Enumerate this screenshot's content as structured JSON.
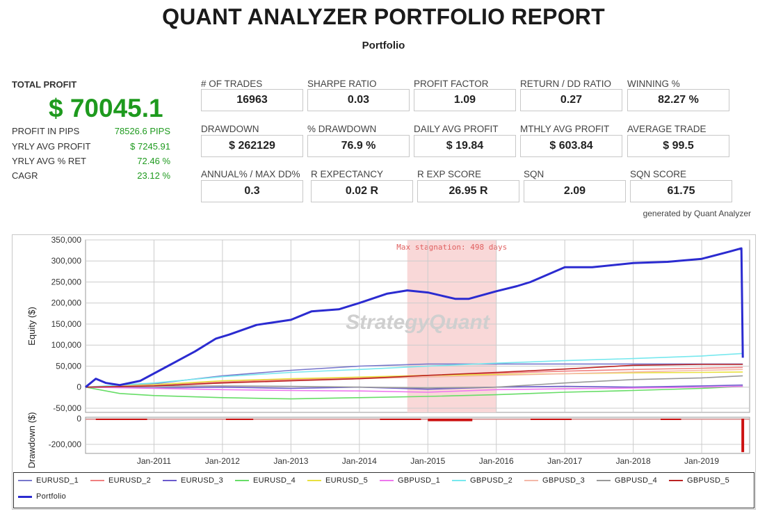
{
  "header": {
    "title": "QUANT ANALYZER PORTFOLIO REPORT",
    "subtitle": "Portfolio"
  },
  "summary": {
    "total_profit_label": "TOTAL PROFIT",
    "total_profit_value": "$ 70045.1",
    "rows": [
      {
        "label": "PROFIT IN PIPS",
        "value": "78526.6 PIPS"
      },
      {
        "label": "YRLY AVG PROFIT",
        "value": "$ 7245.91"
      },
      {
        "label": "YRLY AVG % RET",
        "value": "72.46 %"
      },
      {
        "label": "CAGR",
        "value": "23.12 %"
      }
    ]
  },
  "stats": [
    {
      "label": "# OF TRADES",
      "value": "16963"
    },
    {
      "label": "SHARPE RATIO",
      "value": "0.03"
    },
    {
      "label": "PROFIT FACTOR",
      "value": "1.09"
    },
    {
      "label": "RETURN / DD RATIO",
      "value": "0.27"
    },
    {
      "label": "WINNING %",
      "value": "82.27 %"
    },
    {
      "label": "DRAWDOWN",
      "value": "$ 262129"
    },
    {
      "label": "% DRAWDOWN",
      "value": "76.9 %"
    },
    {
      "label": "DAILY AVG PROFIT",
      "value": "$ 19.84"
    },
    {
      "label": "MTHLY AVG PROFIT",
      "value": "$ 603.84"
    },
    {
      "label": "AVERAGE TRADE",
      "value": "$ 99.5"
    },
    {
      "label": "ANNUAL% / MAX DD%",
      "value": "0.3"
    },
    {
      "label": "R EXPECTANCY",
      "value": "0.02 R"
    },
    {
      "label": "R EXP SCORE",
      "value": "26.95 R"
    },
    {
      "label": "SQN",
      "value": "2.09"
    },
    {
      "label": "SQN SCORE",
      "value": "61.75"
    }
  ],
  "generated_by": "generated by Quant Analyzer",
  "colors": {
    "profit_green": "#1e9a1e",
    "portfolio": "#2b2bd0",
    "stagnation": "#f8d4d4",
    "drawdown": "#cc1111"
  },
  "chart_data": {
    "type": "line",
    "ylabel": "Equity ($)",
    "drawdown_label": "Drawdown ($)",
    "ylim": [
      -60000,
      350000
    ],
    "y_ticks": [
      350000,
      300000,
      250000,
      200000,
      150000,
      100000,
      50000,
      0,
      -50000
    ],
    "y_tick_labels": [
      "350,000",
      "300,000",
      "250,000",
      "200,000",
      "150,000",
      "100,000",
      "50,000",
      "0",
      "-50,000"
    ],
    "drawdown_ylim": [
      -270000,
      0
    ],
    "drawdown_ticks": [
      0,
      -200000
    ],
    "drawdown_tick_labels": [
      "0",
      "-200,000"
    ],
    "x_range": [
      2010.0,
      2019.7
    ],
    "x_ticks": [
      2011,
      2012,
      2013,
      2014,
      2015,
      2016,
      2017,
      2018,
      2019
    ],
    "x_tick_labels": [
      "Jan-2011",
      "Jan-2012",
      "Jan-2013",
      "Jan-2014",
      "Jan-2015",
      "Jan-2016",
      "Jan-2017",
      "Jan-2018",
      "Jan-2019"
    ],
    "stagnation": {
      "x0": 2014.7,
      "x1": 2016.0,
      "label": "Max stagnation: 498 days"
    },
    "watermark": "StrategyQuant",
    "legend_placement": "bottom",
    "series": [
      {
        "name": "EURUSD_1",
        "color": "#7777cc",
        "x": [
          2010.0,
          2011.0,
          2012.0,
          2013.0,
          2014.0,
          2015.0,
          2016.0,
          2017.0,
          2018.0,
          2019.0,
          2019.6
        ],
        "values": [
          0,
          8000,
          27000,
          40000,
          50000,
          55000,
          55000,
          55000,
          55000,
          55000,
          55000
        ]
      },
      {
        "name": "EURUSD_2",
        "color": "#f08080",
        "x": [
          2010.0,
          2011.0,
          2012.0,
          2013.0,
          2014.0,
          2015.0,
          2016.0,
          2017.0,
          2018.0,
          2019.0,
          2019.6
        ],
        "values": [
          0,
          5000,
          12000,
          18000,
          22000,
          28000,
          33000,
          38000,
          42000,
          45000,
          47000
        ]
      },
      {
        "name": "EURUSD_3",
        "color": "#6a5acd",
        "x": [
          2010.0,
          2011.0,
          2012.0,
          2013.0,
          2014.0,
          2015.0,
          2016.0,
          2017.0,
          2018.0,
          2019.0,
          2019.6
        ],
        "values": [
          0,
          -2000,
          0,
          -3000,
          0,
          -5000,
          0,
          2000,
          0,
          3000,
          5000
        ]
      },
      {
        "name": "EURUSD_4",
        "color": "#66dd66",
        "x": [
          2010.0,
          2010.5,
          2011.0,
          2012.0,
          2013.0,
          2014.0,
          2015.0,
          2016.0,
          2017.0,
          2018.0,
          2019.0,
          2019.6
        ],
        "values": [
          0,
          -15000,
          -20000,
          -25000,
          -28000,
          -25000,
          -22000,
          -18000,
          -12000,
          -8000,
          -3000,
          2000
        ]
      },
      {
        "name": "EURUSD_5",
        "color": "#e8e040",
        "x": [
          2010.0,
          2011.0,
          2012.0,
          2013.0,
          2014.0,
          2015.0,
          2016.0,
          2017.0,
          2018.0,
          2019.0,
          2019.6
        ],
        "values": [
          0,
          6000,
          15000,
          20000,
          24000,
          28000,
          30000,
          32000,
          34000,
          35000,
          36000
        ]
      },
      {
        "name": "GBPUSD_1",
        "color": "#ee77ee",
        "x": [
          2010.0,
          2011.0,
          2012.0,
          2013.0,
          2014.0,
          2015.0,
          2016.0,
          2017.0,
          2018.0,
          2019.0,
          2019.6
        ],
        "values": [
          0,
          -3000,
          -6000,
          -8000,
          -9000,
          -12000,
          -6000,
          -4000,
          -2000,
          0,
          2000
        ]
      },
      {
        "name": "GBPUSD_2",
        "color": "#77e8ee",
        "x": [
          2010.0,
          2011.0,
          2012.0,
          2013.0,
          2014.0,
          2015.0,
          2016.0,
          2017.0,
          2018.0,
          2019.0,
          2019.6
        ],
        "values": [
          0,
          10000,
          25000,
          35000,
          42000,
          50000,
          57000,
          63000,
          68000,
          74000,
          80000
        ]
      },
      {
        "name": "GBPUSD_3",
        "color": "#f4b8a8",
        "x": [
          2010.0,
          2011.0,
          2012.0,
          2013.0,
          2014.0,
          2015.0,
          2016.0,
          2017.0,
          2018.0,
          2019.0,
          2019.6
        ],
        "values": [
          0,
          4000,
          10000,
          16000,
          20000,
          24000,
          28000,
          32000,
          36000,
          40000,
          42000
        ]
      },
      {
        "name": "GBPUSD_4",
        "color": "#999999",
        "x": [
          2010.0,
          2011.0,
          2012.0,
          2013.0,
          2014.0,
          2015.0,
          2016.0,
          2017.0,
          2018.0,
          2019.0,
          2019.6
        ],
        "values": [
          0,
          2000,
          3000,
          2000,
          0,
          -2000,
          0,
          10000,
          18000,
          22000,
          27000
        ]
      },
      {
        "name": "GBPUSD_5",
        "color": "#bb2222",
        "x": [
          2010.0,
          2011.0,
          2012.0,
          2013.0,
          2014.0,
          2015.0,
          2016.0,
          2017.0,
          2018.0,
          2019.0,
          2019.6
        ],
        "values": [
          0,
          3000,
          10000,
          15000,
          20000,
          28000,
          35000,
          43000,
          52000,
          54000,
          54000
        ]
      },
      {
        "name": "Portfolio",
        "color": "#2b2bd0",
        "x": [
          2010.0,
          2010.15,
          2010.3,
          2010.5,
          2010.8,
          2011.2,
          2011.6,
          2011.9,
          2012.1,
          2012.5,
          2013.0,
          2013.3,
          2013.7,
          2014.0,
          2014.4,
          2014.7,
          2015.0,
          2015.4,
          2015.6,
          2016.0,
          2016.3,
          2016.5,
          2017.0,
          2017.4,
          2018.0,
          2018.5,
          2019.0,
          2019.4,
          2019.58,
          2019.6
        ],
        "values": [
          0,
          20000,
          10000,
          5000,
          15000,
          50000,
          85000,
          115000,
          125000,
          148000,
          160000,
          180000,
          185000,
          200000,
          222000,
          230000,
          225000,
          210000,
          210000,
          228000,
          240000,
          250000,
          285000,
          285000,
          295000,
          298000,
          305000,
          322000,
          330000,
          70000
        ]
      }
    ],
    "drawdown_bands": [
      {
        "x0": 2010.15,
        "x1": 2010.9,
        "value": -8000
      },
      {
        "x0": 2012.05,
        "x1": 2012.45,
        "value": -6000
      },
      {
        "x0": 2014.3,
        "x1": 2014.9,
        "value": -5000
      },
      {
        "x0": 2015.0,
        "x1": 2015.65,
        "value": -20000
      },
      {
        "x0": 2016.5,
        "x1": 2017.1,
        "value": -6000
      },
      {
        "x0": 2018.4,
        "x1": 2018.7,
        "value": -4000
      },
      {
        "x0": 2019.58,
        "x1": 2019.62,
        "value": -260000
      }
    ]
  }
}
